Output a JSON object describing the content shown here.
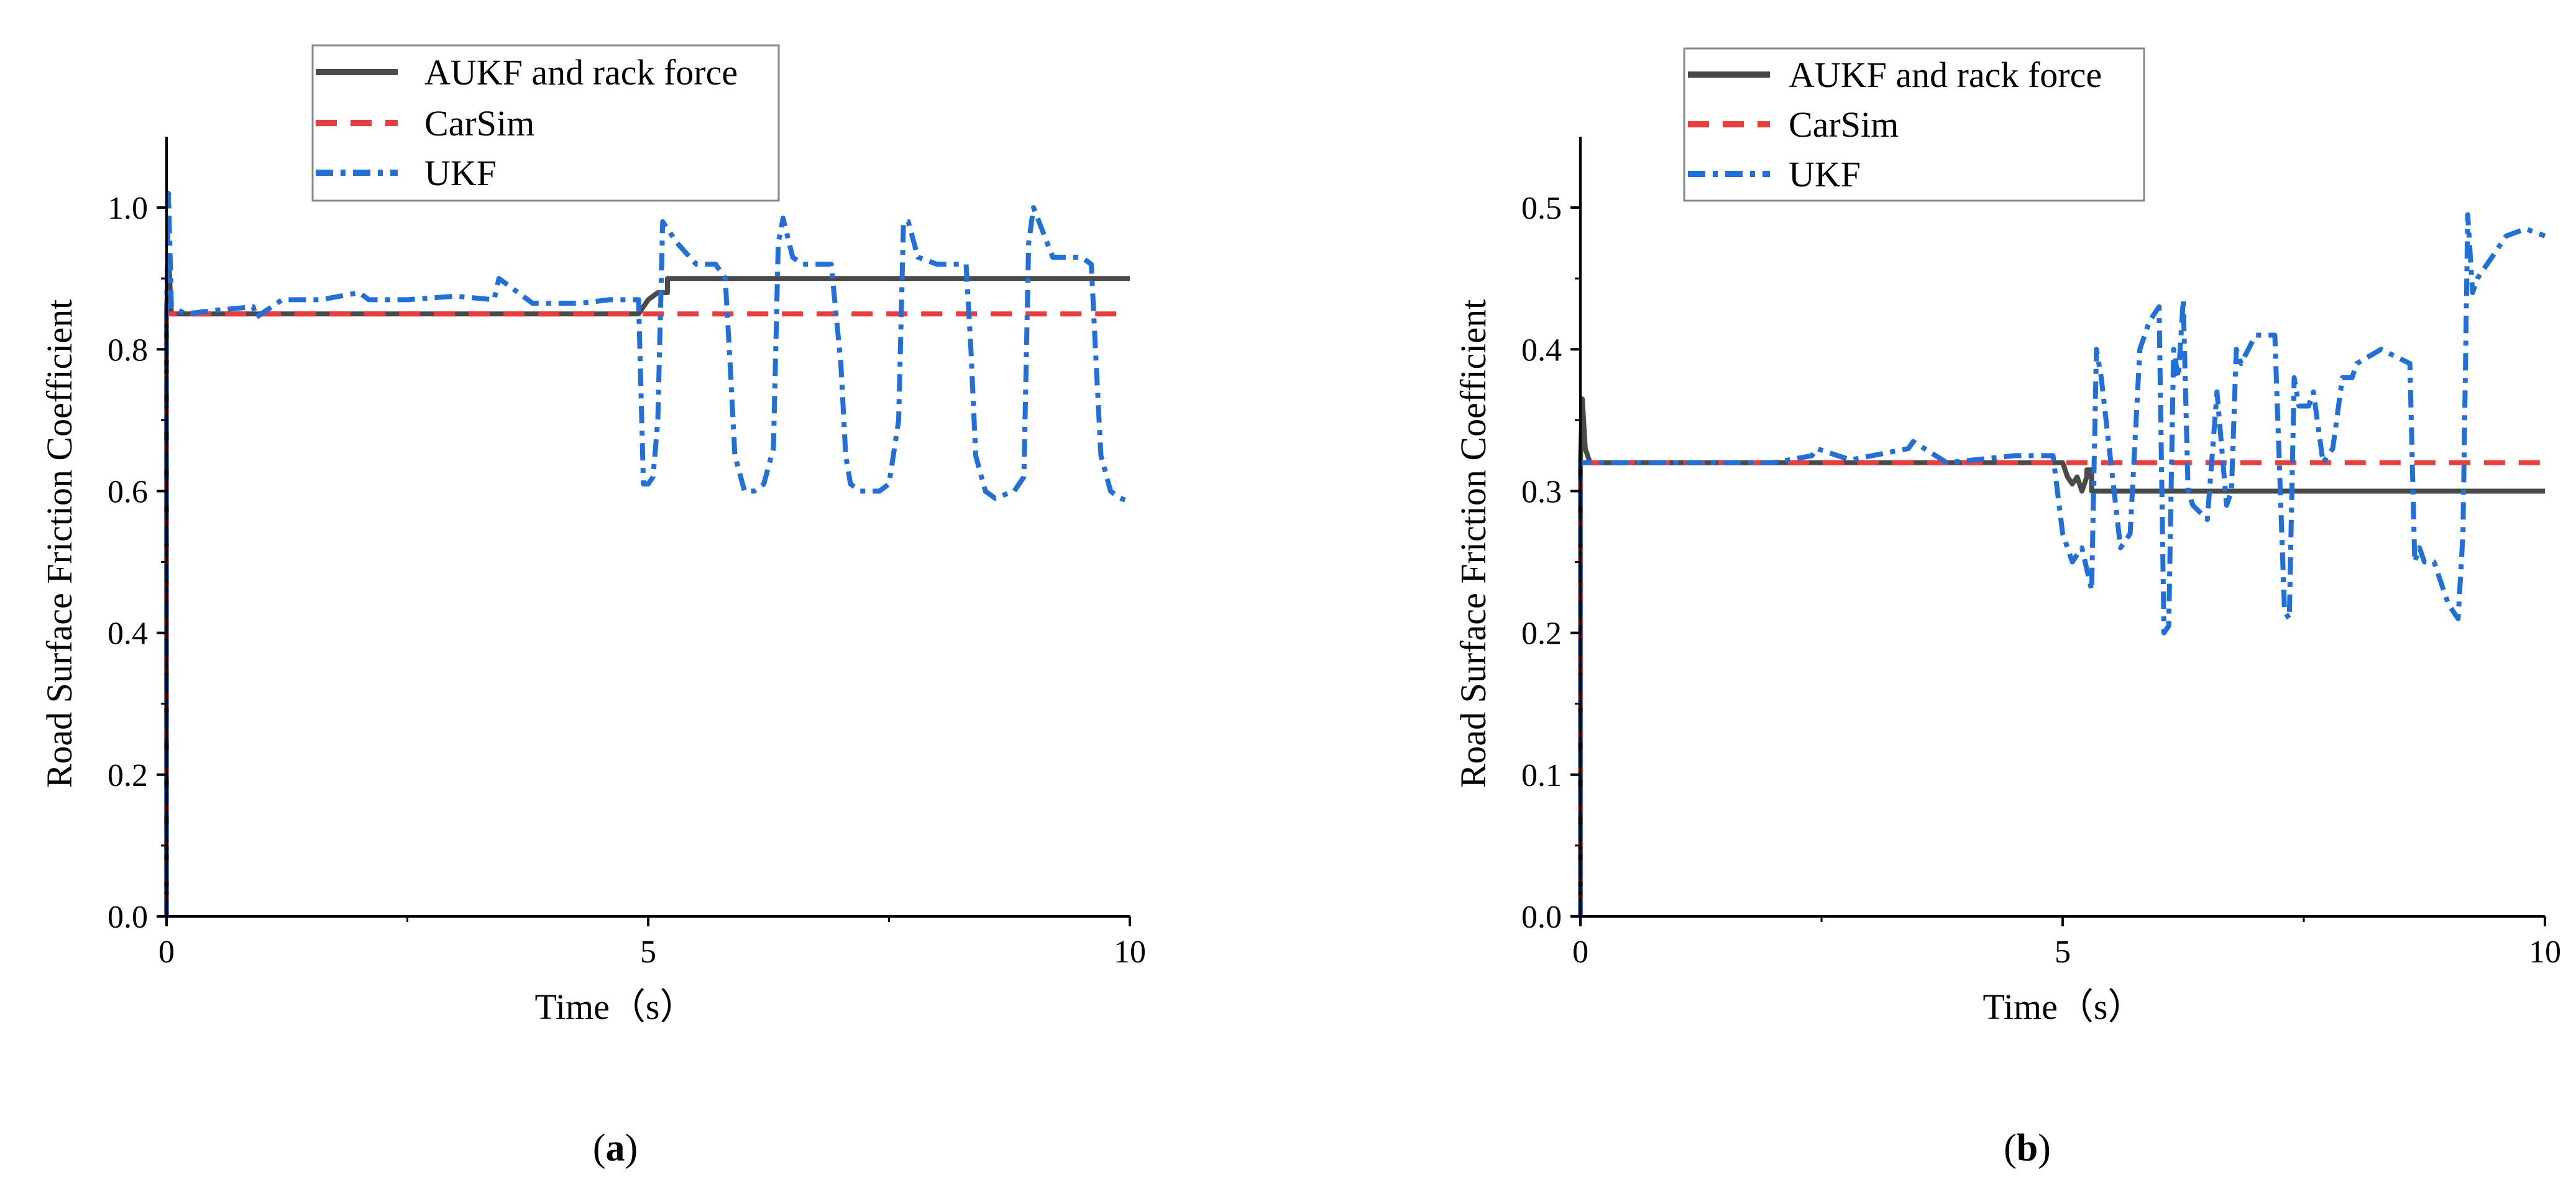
{
  "panels": [
    {
      "caption_label": "a",
      "legend": {
        "entries": [
          {
            "label": "AUKF and rack force",
            "series": "aukf"
          },
          {
            "label": "CarSim",
            "series": "carsim"
          },
          {
            "label": "UKF",
            "series": "ukf"
          }
        ]
      }
    },
    {
      "caption_label": "b",
      "legend": {
        "entries": [
          {
            "label": "AUKF and rack force",
            "series": "aukf"
          },
          {
            "label": "CarSim",
            "series": "carsim"
          },
          {
            "label": "UKF",
            "series": "ukf"
          }
        ]
      }
    }
  ],
  "colors": {
    "aukf": "#4a4a4a",
    "carsim": "#ee3b3b",
    "ukf": "#1f6fdc",
    "axis": "#000000"
  },
  "chart_data": [
    {
      "type": "line",
      "xlabel": "Time（s）",
      "ylabel": "Road Surface Friction Coefficient",
      "xlim": [
        0,
        10
      ],
      "ylim": [
        0,
        1.1
      ],
      "xticks": [
        0,
        5,
        10
      ],
      "xtick_labels": [
        "0",
        "5",
        "10"
      ],
      "yticks": [
        0,
        0.2,
        0.4,
        0.6,
        0.8,
        1.0
      ],
      "ytick_labels": [
        "0.0",
        "0.2",
        "0.4",
        "0.6",
        "0.8",
        "1.0"
      ],
      "grid": false,
      "legend_position": "top",
      "series": [
        {
          "name": "AUKF and rack force",
          "key": "aukf",
          "style": "solid",
          "x": [
            0,
            0,
            0.02,
            0.05,
            0.2,
            1,
            2,
            3,
            4,
            4.9,
            4.95,
            5.0,
            5.1,
            5.2,
            5.2,
            6,
            7,
            8,
            9,
            10
          ],
          "y": [
            0,
            0.85,
            0.93,
            0.85,
            0.85,
            0.85,
            0.85,
            0.85,
            0.85,
            0.85,
            0.86,
            0.87,
            0.88,
            0.88,
            0.9,
            0.9,
            0.9,
            0.9,
            0.9,
            0.9
          ]
        },
        {
          "name": "CarSim",
          "key": "carsim",
          "style": "dash",
          "x": [
            0,
            0,
            0.1,
            2,
            4,
            6,
            8,
            10
          ],
          "y": [
            0,
            0.85,
            0.85,
            0.85,
            0.85,
            0.85,
            0.85,
            0.85
          ]
        },
        {
          "name": "UKF",
          "key": "ukf",
          "style": "dashdot",
          "x": [
            0,
            0,
            0.02,
            0.05,
            0.2,
            0.5,
            0.9,
            0.93,
            1.2,
            1.6,
            2.0,
            2.1,
            2.5,
            3.0,
            3.4,
            3.45,
            3.8,
            4.3,
            4.6,
            4.9,
            4.95,
            5.0,
            5.05,
            5.1,
            5.15,
            5.3,
            5.5,
            5.6,
            5.7,
            5.8,
            5.85,
            5.9,
            6.0,
            6.1,
            6.2,
            6.3,
            6.35,
            6.4,
            6.5,
            6.6,
            6.8,
            6.9,
            7.0,
            7.05,
            7.1,
            7.2,
            7.3,
            7.4,
            7.5,
            7.6,
            7.65,
            7.7,
            7.8,
            8.0,
            8.2,
            8.3,
            8.35,
            8.4,
            8.5,
            8.6,
            8.8,
            8.9,
            8.95,
            9.0,
            9.2,
            9.5,
            9.6,
            9.65,
            9.7,
            9.8,
            9.9,
            10.0
          ],
          "y": [
            0,
            0.85,
            1.02,
            0.86,
            0.85,
            0.855,
            0.86,
            0.845,
            0.87,
            0.87,
            0.88,
            0.87,
            0.87,
            0.875,
            0.87,
            0.9,
            0.865,
            0.865,
            0.87,
            0.87,
            0.61,
            0.61,
            0.62,
            0.7,
            0.98,
            0.95,
            0.92,
            0.92,
            0.92,
            0.9,
            0.78,
            0.65,
            0.6,
            0.6,
            0.61,
            0.66,
            0.95,
            0.985,
            0.93,
            0.92,
            0.92,
            0.92,
            0.78,
            0.65,
            0.61,
            0.6,
            0.6,
            0.6,
            0.61,
            0.7,
            0.98,
            0.98,
            0.93,
            0.92,
            0.92,
            0.92,
            0.8,
            0.65,
            0.6,
            0.59,
            0.6,
            0.62,
            0.95,
            1.0,
            0.93,
            0.93,
            0.92,
            0.78,
            0.65,
            0.6,
            0.59,
            0.585
          ]
        }
      ]
    },
    {
      "type": "line",
      "xlabel": "Time（s）",
      "ylabel": "Road Surface Friction Coefficient",
      "xlim": [
        0,
        10
      ],
      "ylim": [
        0,
        0.55
      ],
      "xticks": [
        0,
        5,
        10
      ],
      "xtick_labels": [
        "0",
        "5",
        "10"
      ],
      "yticks": [
        0,
        0.1,
        0.2,
        0.3,
        0.4,
        0.5
      ],
      "ytick_labels": [
        "0.0",
        "0.1",
        "0.2",
        "0.3",
        "0.4",
        "0.5"
      ],
      "grid": false,
      "legend_position": "top",
      "series": [
        {
          "name": "AUKF and rack force",
          "key": "aukf",
          "style": "solid",
          "x": [
            0,
            0,
            0.02,
            0.05,
            0.1,
            0.5,
            2,
            4,
            5.0,
            5.05,
            5.1,
            5.15,
            5.2,
            5.25,
            5.25,
            5.3,
            5.3,
            6,
            7,
            8,
            9,
            10
          ],
          "y": [
            0,
            0.32,
            0.365,
            0.33,
            0.32,
            0.32,
            0.32,
            0.32,
            0.32,
            0.31,
            0.305,
            0.31,
            0.3,
            0.31,
            0.315,
            0.315,
            0.3,
            0.3,
            0.3,
            0.3,
            0.3,
            0.3
          ]
        },
        {
          "name": "CarSim",
          "key": "carsim",
          "style": "dash",
          "x": [
            0,
            0,
            0.1,
            2,
            4,
            6,
            8,
            10
          ],
          "y": [
            0,
            0.32,
            0.32,
            0.32,
            0.32,
            0.32,
            0.32,
            0.32
          ]
        },
        {
          "name": "UKF",
          "key": "ukf",
          "style": "dashdot",
          "x": [
            0,
            0,
            0.1,
            0.5,
            1.0,
            1.5,
            2.0,
            2.4,
            2.45,
            2.8,
            3.4,
            3.45,
            3.8,
            4.5,
            4.9,
            5.0,
            5.05,
            5.1,
            5.2,
            5.3,
            5.35,
            5.4,
            5.6,
            5.7,
            5.8,
            5.9,
            6.0,
            6.05,
            6.1,
            6.15,
            6.2,
            6.25,
            6.3,
            6.35,
            6.5,
            6.6,
            6.7,
            6.75,
            6.8,
            6.85,
            7.0,
            7.2,
            7.3,
            7.35,
            7.4,
            7.45,
            7.55,
            7.6,
            7.7,
            7.8,
            7.9,
            8.0,
            8.05,
            8.3,
            8.6,
            8.65,
            8.7,
            8.75,
            8.85,
            9.0,
            9.1,
            9.15,
            9.2,
            9.25,
            9.3,
            9.4,
            9.6,
            9.8,
            10.0
          ],
          "y": [
            0,
            0.32,
            0.32,
            0.32,
            0.32,
            0.32,
            0.32,
            0.325,
            0.33,
            0.322,
            0.33,
            0.335,
            0.32,
            0.325,
            0.325,
            0.27,
            0.26,
            0.25,
            0.26,
            0.23,
            0.4,
            0.38,
            0.26,
            0.27,
            0.4,
            0.42,
            0.43,
            0.2,
            0.205,
            0.4,
            0.38,
            0.435,
            0.3,
            0.29,
            0.28,
            0.37,
            0.29,
            0.3,
            0.4,
            0.39,
            0.41,
            0.41,
            0.215,
            0.21,
            0.38,
            0.36,
            0.36,
            0.37,
            0.32,
            0.33,
            0.38,
            0.38,
            0.39,
            0.4,
            0.39,
            0.25,
            0.26,
            0.25,
            0.25,
            0.22,
            0.21,
            0.27,
            0.495,
            0.44,
            0.45,
            0.46,
            0.48,
            0.485,
            0.48
          ]
        }
      ]
    }
  ]
}
